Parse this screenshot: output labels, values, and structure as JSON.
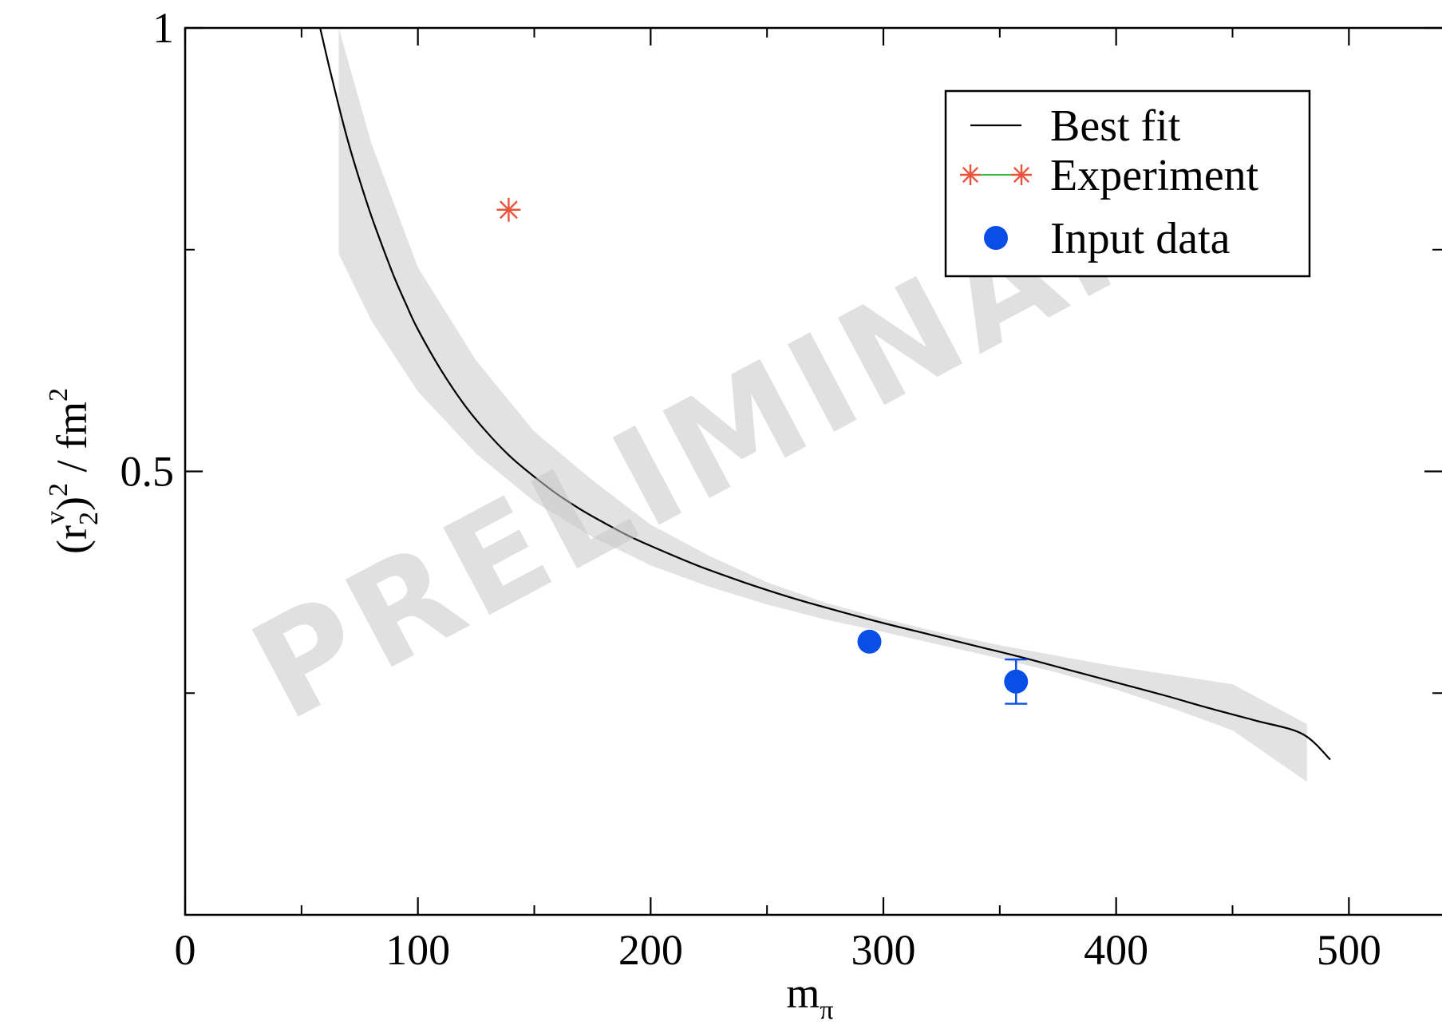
{
  "chart_data": {
    "type": "line",
    "watermark": "PRELIMINARY",
    "xlabel": "m",
    "xlabel_sub": "π",
    "ylabel": "(r",
    "ylabel_sub": "2",
    "ylabel_sup": "v",
    "ylabel_rest": ")",
    "ylabel_sup2": "2",
    "ylabel_unit": " / fm",
    "ylabel_sup3": "2",
    "xlim": [
      0,
      540
    ],
    "ylim": [
      0,
      1
    ],
    "x_ticks": [
      0,
      100,
      200,
      300,
      400,
      500
    ],
    "x_tick_labels": [
      "0",
      "100",
      "200",
      "300",
      "400",
      "500"
    ],
    "x_minor_ticks": [
      50,
      150,
      250,
      350,
      450
    ],
    "y_ticks": [
      0.5,
      1
    ],
    "y_tick_labels": [
      "0.5",
      "1"
    ],
    "y_minor_ticks": [
      0.25,
      0.75
    ],
    "grid": false,
    "legend_position": "top-right",
    "colors": {
      "best_fit": "#000000",
      "experiment": "#e8533a",
      "experiment_line": "#3cb83c",
      "input_data": "#0a4ee8",
      "band": "#e2e2e2"
    },
    "series": [
      {
        "name": "Best fit",
        "kind": "line",
        "x": [
          58,
          62,
          66,
          70,
          75,
          80,
          85,
          90,
          95,
          100,
          110,
          120,
          130,
          140,
          150,
          160,
          170,
          180,
          190,
          200,
          220,
          240,
          260,
          280,
          300,
          320,
          340,
          360,
          380,
          400,
          420,
          440,
          460,
          480,
          492
        ],
        "y": [
          1.0,
          0.955,
          0.912,
          0.872,
          0.828,
          0.788,
          0.752,
          0.718,
          0.688,
          0.66,
          0.614,
          0.575,
          0.543,
          0.516,
          0.494,
          0.474,
          0.457,
          0.442,
          0.428,
          0.416,
          0.394,
          0.375,
          0.358,
          0.343,
          0.329,
          0.316,
          0.303,
          0.29,
          0.276,
          0.262,
          0.248,
          0.233,
          0.219,
          0.204,
          0.175
        ]
      },
      {
        "name": "Experiment",
        "kind": "star",
        "x": [
          139
        ],
        "y": [
          0.795
        ]
      },
      {
        "name": "Input data",
        "kind": "points",
        "x": [
          294,
          357
        ],
        "y": [
          0.308,
          0.263
        ],
        "yerr": [
          0.0,
          0.025
        ]
      }
    ],
    "band": {
      "x": [
        66,
        80,
        100,
        125,
        150,
        175,
        200,
        225,
        250,
        275,
        300,
        325,
        350,
        375,
        400,
        425,
        450,
        482
      ],
      "lower": [
        0.745,
        0.67,
        0.59,
        0.52,
        0.466,
        0.426,
        0.394,
        0.37,
        0.35,
        0.333,
        0.319,
        0.304,
        0.289,
        0.273,
        0.254,
        0.232,
        0.208,
        0.15
      ],
      "upper": [
        1.0,
        0.87,
        0.73,
        0.625,
        0.545,
        0.49,
        0.44,
        0.405,
        0.375,
        0.352,
        0.334,
        0.318,
        0.304,
        0.292,
        0.28,
        0.27,
        0.26,
        0.215
      ]
    }
  }
}
